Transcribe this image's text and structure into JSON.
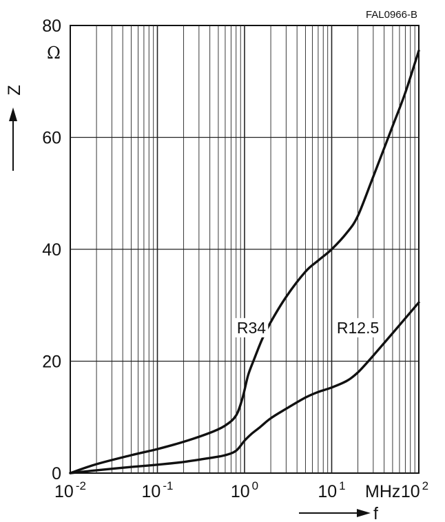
{
  "figure_code": "FAL0966-B",
  "y_axis": {
    "label": "Z",
    "unit": "Ω"
  },
  "x_axis": {
    "label": "f",
    "unit": "MHz"
  },
  "chart_data": {
    "type": "line",
    "title": "",
    "xlabel": "f",
    "ylabel": "Z",
    "x_unit": "MHz",
    "y_unit": "Ω",
    "x_scale": "log",
    "xlim": [
      0.01,
      100
    ],
    "ylim": [
      0,
      80
    ],
    "x_ticks": [
      {
        "value": 0.01,
        "base": "10",
        "exp": "-2"
      },
      {
        "value": 0.1,
        "base": "10",
        "exp": "-1"
      },
      {
        "value": 1,
        "base": "10",
        "exp": "0"
      },
      {
        "value": 10,
        "base": "10",
        "exp": "1"
      },
      {
        "value": 100,
        "base": "10",
        "exp": "2"
      }
    ],
    "y_ticks": [
      {
        "value": 0,
        "label": "0"
      },
      {
        "value": 20,
        "label": "20"
      },
      {
        "value": 40,
        "label": "40"
      },
      {
        "value": 60,
        "label": "60"
      },
      {
        "value": 80,
        "label": "80"
      }
    ],
    "grid": true,
    "series": [
      {
        "name": "R34",
        "x": [
          0.01,
          0.02,
          0.05,
          0.1,
          0.2,
          0.4,
          0.6,
          0.8,
          0.95,
          1.1,
          1.3,
          1.6,
          2,
          3,
          5,
          7,
          10,
          15,
          20,
          30,
          50,
          70,
          100
        ],
        "y": [
          0,
          1.6,
          3.2,
          4.3,
          5.6,
          7.2,
          8.5,
          10.3,
          13.5,
          17.5,
          20.5,
          24,
          27,
          31.5,
          36,
          38,
          40,
          43,
          46,
          53,
          62,
          68,
          75.5
        ]
      },
      {
        "name": "R12.5",
        "x": [
          0.01,
          0.02,
          0.05,
          0.1,
          0.2,
          0.4,
          0.6,
          0.8,
          1,
          1.2,
          1.5,
          2,
          3,
          5,
          7,
          10,
          15,
          20,
          30,
          50,
          100
        ],
        "y": [
          0,
          0.5,
          1.1,
          1.5,
          2.0,
          2.7,
          3.2,
          4.0,
          5.8,
          7.0,
          8.2,
          9.8,
          11.5,
          13.5,
          14.5,
          15.3,
          16.5,
          18,
          21,
          25,
          30.5
        ]
      }
    ],
    "annotations": [
      {
        "series": "R34",
        "text": "R34"
      },
      {
        "series": "R12.5",
        "text": "R12.5"
      }
    ]
  }
}
